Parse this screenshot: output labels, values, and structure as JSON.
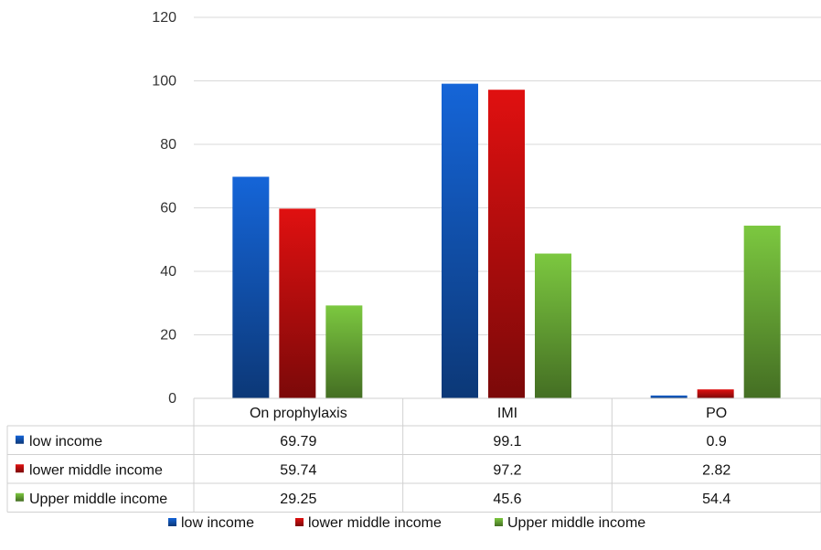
{
  "chart_data": {
    "type": "bar",
    "categories": [
      "On prophylaxis",
      "IMI",
      "PO"
    ],
    "series": [
      {
        "name": "low income",
        "values": [
          69.79,
          99.1,
          0.9
        ],
        "color": "#1565d8"
      },
      {
        "name": "lower middle income",
        "values": [
          59.74,
          97.2,
          2.82
        ],
        "color": "#e01010"
      },
      {
        "name": "Upper middle income",
        "values": [
          29.25,
          45.6,
          54.4
        ],
        "color": "#7cc840"
      }
    ],
    "table_values": [
      [
        "69.79",
        "99.1",
        "0.9"
      ],
      [
        "59.74",
        "97.2",
        "2.82"
      ],
      [
        "29.25",
        "45.6",
        "54.4"
      ]
    ],
    "ylim": [
      0,
      120
    ],
    "yticks": [
      "0",
      "20",
      "40",
      "60",
      "80",
      "100",
      "120"
    ],
    "title": "",
    "xlabel": "",
    "ylabel": "",
    "grid": true,
    "legend_position": "bottom",
    "data_table": true
  }
}
